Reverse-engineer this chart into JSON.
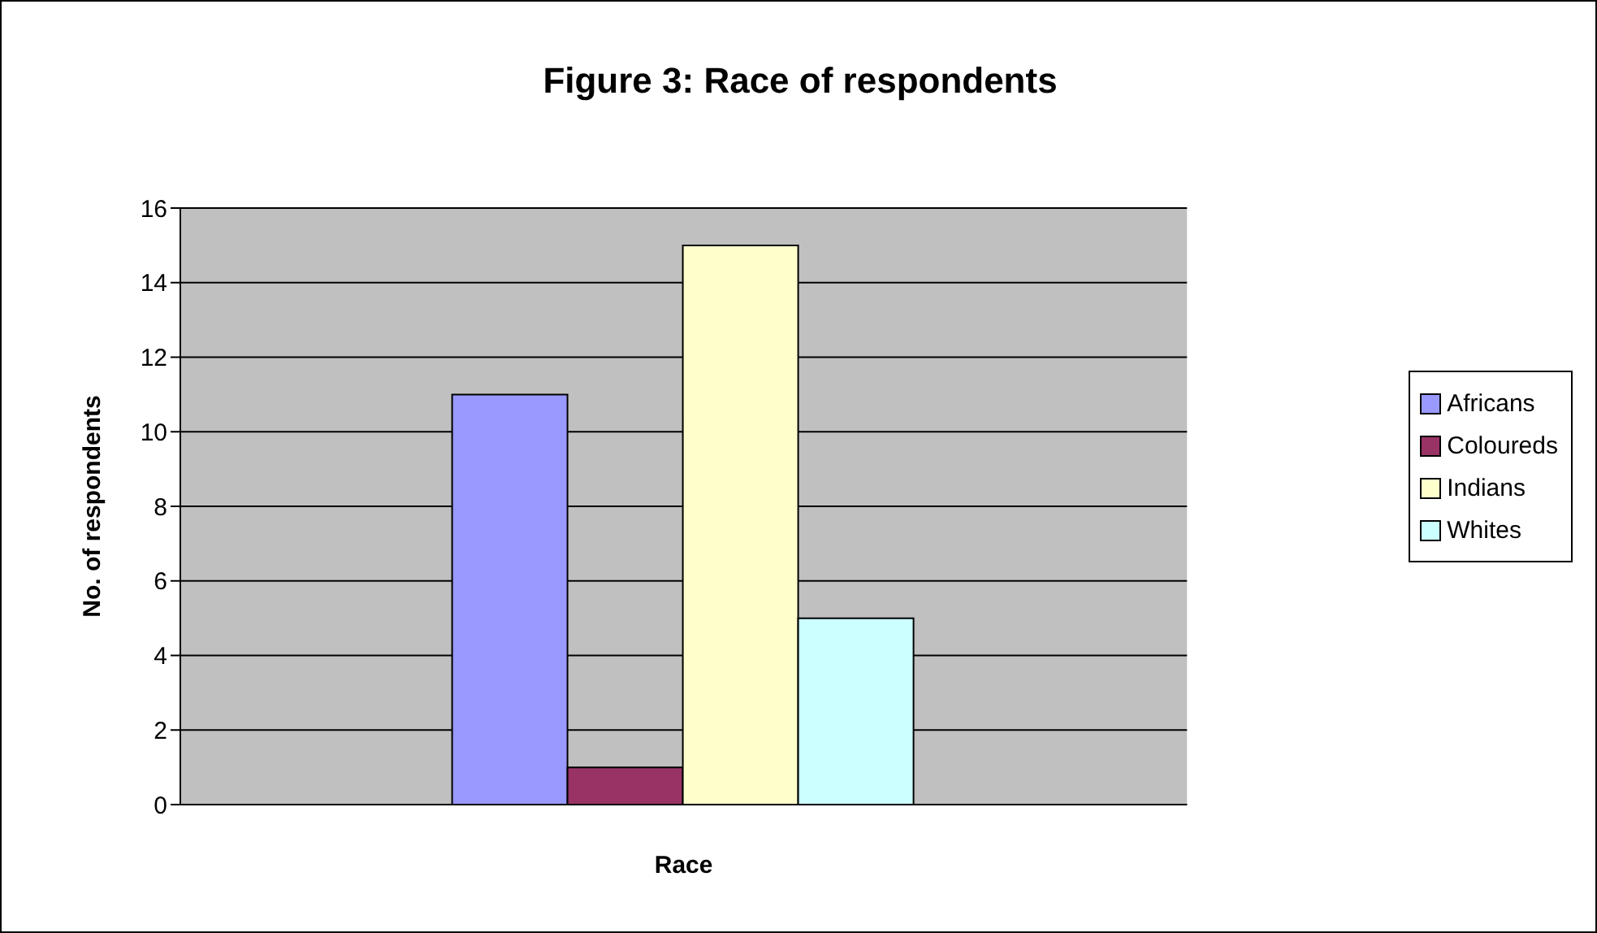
{
  "chart_data": {
    "type": "bar",
    "title": "Figure 3: Race of respondents",
    "xlabel": "Race",
    "ylabel": "No. of respondents",
    "categories": [
      null
    ],
    "series": [
      {
        "name": "Africans",
        "color": "#9999ff",
        "values": [
          11
        ]
      },
      {
        "name": "Coloureds",
        "color": "#993366",
        "values": [
          1
        ]
      },
      {
        "name": "Indians",
        "color": "#ffffcc",
        "values": [
          15
        ]
      },
      {
        "name": "Whites",
        "color": "#ccffff",
        "values": [
          5
        ]
      }
    ],
    "ylim": [
      0,
      16
    ],
    "yticks": [
      0,
      2,
      4,
      6,
      8,
      10,
      12,
      14,
      16
    ],
    "grid": "y",
    "legend": "right"
  }
}
